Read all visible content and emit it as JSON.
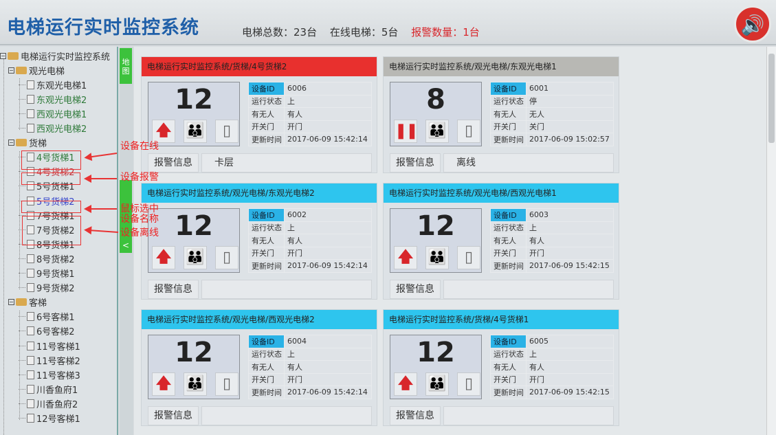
{
  "header": {
    "title": "电梯运行实时监控系统",
    "total": "电梯总数：23台",
    "online": "在线电梯：5台",
    "alarm": "报警数量：1台",
    "speaker_icon": "speaker-icon"
  },
  "tree": {
    "root": "电梯运行实时监控系统",
    "groups": [
      {
        "label": "观光电梯",
        "items": [
          {
            "label": "东观光电梯1",
            "status": "normal"
          },
          {
            "label": "东观光电梯2",
            "status": "online"
          },
          {
            "label": "西观光电梯1",
            "status": "online"
          },
          {
            "label": "西观光电梯2",
            "status": "online"
          }
        ]
      },
      {
        "label": "货梯",
        "items": [
          {
            "label": "4号货梯1",
            "status": "online"
          },
          {
            "label": "4号货梯2",
            "status": "alarm"
          },
          {
            "label": "5号货梯1",
            "status": "normal"
          },
          {
            "label": "5号货梯2",
            "status": "selected"
          },
          {
            "label": "7号货梯1",
            "status": "normal"
          },
          {
            "label": "7号货梯2",
            "status": "normal"
          },
          {
            "label": "8号货梯1",
            "status": "normal"
          },
          {
            "label": "8号货梯2",
            "status": "normal"
          },
          {
            "label": "9号货梯1",
            "status": "normal"
          },
          {
            "label": "9号货梯2",
            "status": "normal"
          }
        ]
      },
      {
        "label": "客梯",
        "items": [
          {
            "label": "6号客梯1",
            "status": "normal"
          },
          {
            "label": "6号客梯2",
            "status": "normal"
          },
          {
            "label": "11号客梯1",
            "status": "normal"
          },
          {
            "label": "11号客梯2",
            "status": "normal"
          },
          {
            "label": "11号客梯3",
            "status": "normal"
          },
          {
            "label": "川香鱼府1",
            "status": "normal"
          },
          {
            "label": "川香鱼府2",
            "status": "normal"
          },
          {
            "label": "12号客梯1",
            "status": "normal"
          }
        ]
      }
    ]
  },
  "tabs": {
    "map": "地图",
    "collapse": "<"
  },
  "annotations": [
    "设备在线",
    "设备报警",
    "鼠标选中设备名称",
    "设备离线"
  ],
  "labels": {
    "id": "设备ID",
    "state": "运行状态",
    "person": "有无人",
    "door": "开关门",
    "time": "更新时间",
    "alarm_info": "报警信息"
  },
  "colors": {
    "alarm": "#e8302e",
    "online": "#2ec5ee",
    "offline": "#b8b8b4"
  },
  "cards": [
    {
      "path": "电梯运行实时监控系统/货梯/4号货梯2",
      "status": "alarm",
      "floor": "12",
      "direction": "up",
      "id": "6006",
      "state": "上",
      "person": "有人",
      "door": "开门",
      "time": "2017-06-09 15:42:14",
      "alarm_msg": "卡层"
    },
    {
      "path": "电梯运行实时监控系统/观光电梯/东观光电梯1",
      "status": "offline",
      "floor": "8",
      "direction": "stop",
      "id": "6001",
      "state": "停",
      "person": "无人",
      "door": "关门",
      "time": "2017-06-09 15:02:57",
      "alarm_msg": "离线"
    },
    {
      "path": "电梯运行实时监控系统/观光电梯/东观光电梯2",
      "status": "online",
      "floor": "12",
      "direction": "up",
      "id": "6002",
      "state": "上",
      "person": "有人",
      "door": "开门",
      "time": "2017-06-09 15:42:14",
      "alarm_msg": ""
    },
    {
      "path": "电梯运行实时监控系统/观光电梯/西观光电梯1",
      "status": "online",
      "floor": "12",
      "direction": "up",
      "id": "6003",
      "state": "上",
      "person": "有人",
      "door": "开门",
      "time": "2017-06-09 15:42:15",
      "alarm_msg": ""
    },
    {
      "path": "电梯运行实时监控系统/观光电梯/西观光电梯2",
      "status": "online",
      "floor": "12",
      "direction": "up",
      "id": "6004",
      "state": "上",
      "person": "有人",
      "door": "开门",
      "time": "2017-06-09 15:42:14",
      "alarm_msg": ""
    },
    {
      "path": "电梯运行实时监控系统/货梯/4号货梯1",
      "status": "online",
      "floor": "12",
      "direction": "up",
      "id": "6005",
      "state": "上",
      "person": "有人",
      "door": "开门",
      "time": "2017-06-09 15:42:15",
      "alarm_msg": ""
    }
  ]
}
